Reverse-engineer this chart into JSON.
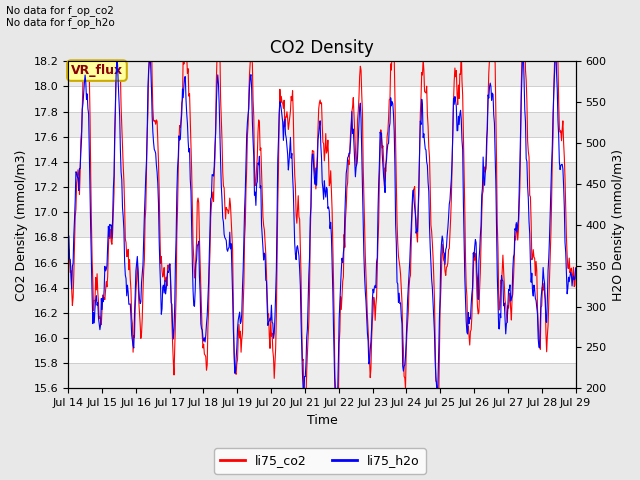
{
  "title": "CO2 Density",
  "xlabel": "Time",
  "ylabel_left": "CO2 Density (mmol/m3)",
  "ylabel_right": "H2O Density (mmol/m3)",
  "ylim_left": [
    15.6,
    18.2
  ],
  "ylim_right": [
    200,
    600
  ],
  "xlim": [
    0,
    360
  ],
  "x_tick_labels": [
    "Jul 14",
    "Jul 15",
    "Jul 16",
    "Jul 17",
    "Jul 18",
    "Jul 19",
    "Jul 20",
    "Jul 21",
    "Jul 22",
    "Jul 23",
    "Jul 24",
    "Jul 25",
    "Jul 26",
    "Jul 27",
    "Jul 28",
    "Jul 29"
  ],
  "x_tick_positions": [
    0,
    24,
    48,
    72,
    96,
    120,
    144,
    168,
    192,
    216,
    240,
    264,
    288,
    312,
    336,
    360
  ],
  "no_data_text": "No data for f_op_co2\nNo data for f_op_h2o",
  "vr_flux_label": "VR_flux",
  "legend_labels": [
    "li75_co2",
    "li75_h2o"
  ],
  "co2_color": "#FF0000",
  "h2o_color": "#0000FF",
  "fig_bg_color": "#E8E8E8",
  "plot_bg_color": "#FFFFFF",
  "title_fontsize": 12,
  "axis_label_fontsize": 9,
  "tick_fontsize": 8
}
